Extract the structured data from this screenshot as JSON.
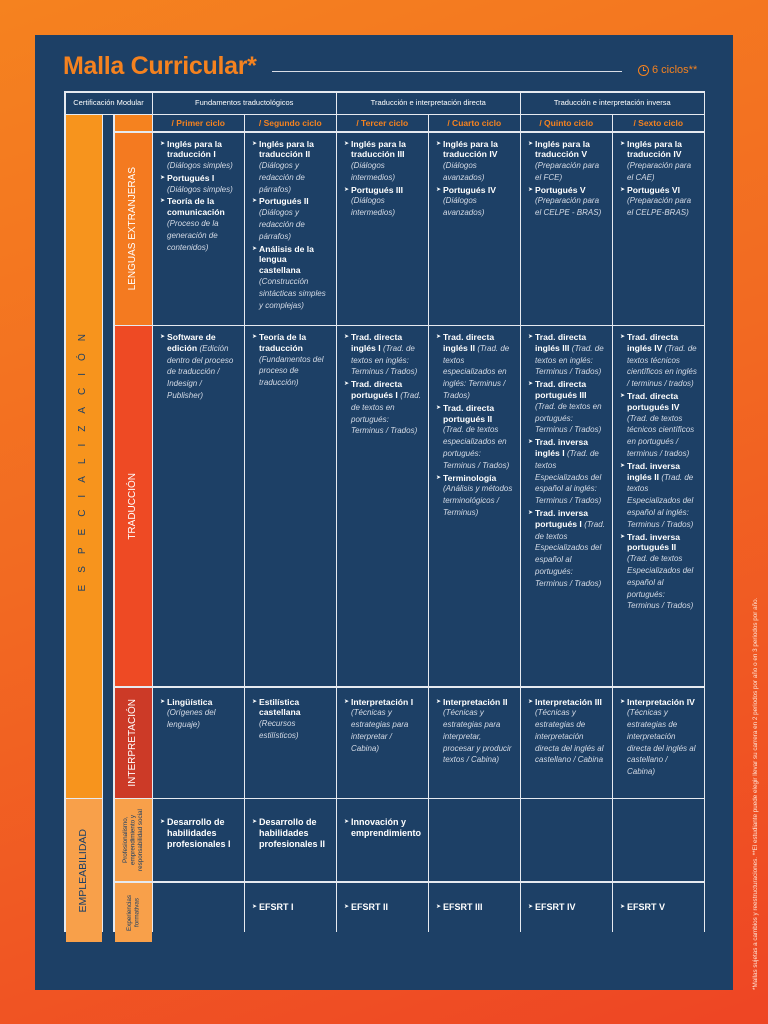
{
  "header": {
    "title": "Malla Curricular*",
    "cycles": "6 ciclos**"
  },
  "table": {
    "cert_modular": "Certificación Modular",
    "groups": [
      "Fundamentos traductológicos",
      "Traducción e interpretación directa",
      "Traducción e interpretación inversa"
    ],
    "cycles": [
      "/ Primer ciclo",
      "/ Segundo ciclo",
      "/ Tercer ciclo",
      "/ Cuarto ciclo",
      "/ Quinto ciclo",
      "/ Sexto ciclo"
    ],
    "areas": {
      "especializacion": "ESPECIALIZACIÓN",
      "empleabilidad": "EMPLEABILIDAD"
    },
    "rows": [
      {
        "label": "LENGUAS EXTRANJERAS",
        "color": "#f47a20",
        "cells": [
          [
            {
              "t": "Inglés para la traducción I",
              "d": "(Diálogos simples)"
            },
            {
              "t": "Portugués I",
              "d": "(Diálogos simples)"
            },
            {
              "t": "Teoría de la comunicación",
              "d": "(Proceso de la generación de contenidos)"
            }
          ],
          [
            {
              "t": "Inglés para la traducción II",
              "d": "(Diálogos y redacción de párrafos)"
            },
            {
              "t": "Portugués II",
              "d": "(Diálogos y redacción de párrafos)"
            },
            {
              "t": "Análisis de la lengua castellana",
              "d": "(Construcción sintácticas simples y complejas)"
            }
          ],
          [
            {
              "t": "Inglés para la traducción III",
              "d": "(Diálogos intermedios)"
            },
            {
              "t": "Portugués III",
              "d": "(Diálogos intermedios)"
            }
          ],
          [
            {
              "t": "Inglés para la traducción IV",
              "d": "(Diálogos avanzados)"
            },
            {
              "t": "Portugués IV",
              "d": "(Diálogos avanzados)"
            }
          ],
          [
            {
              "t": "Inglés para la traducción V",
              "d": "(Preparación para el FCE)"
            },
            {
              "t": "Portugués V",
              "d": "(Preparación para el CELPE - BRAS)"
            }
          ],
          [
            {
              "t": "Inglés para la traducción IV",
              "d": "(Preparación para el CAE)"
            },
            {
              "t": "Portugués VI",
              "d": "(Preparación para el CELPE-BRAS)"
            }
          ]
        ]
      },
      {
        "label": "TRADUCCIÓN",
        "color": "#ee4a24",
        "cells": [
          [
            {
              "t": "Software de edición",
              "d": "(Edición dentro del proceso de traducción / Indesign / Publisher)"
            }
          ],
          [
            {
              "t": "Teoría de la traducción",
              "d": "(Fundamentos del proceso de traducción)"
            }
          ],
          [
            {
              "t": "Trad. directa inglés I",
              "d": "(Trad. de textos en inglés: Terminus / Trados)"
            },
            {
              "t": "Trad. directa portugués I",
              "d": "(Trad. de textos en portugués: Terminus / Trados)"
            }
          ],
          [
            {
              "t": "Trad. directa inglés II",
              "d": "(Trad. de textos especializados en inglés: Terminus / Trados)"
            },
            {
              "t": "Trad. directa portugués II",
              "d": "(Trad. de textos especializados en portugués: Terminus / Trados)"
            },
            {
              "t": "Terminología",
              "d": "(Análisis y métodos terminológicos / Terminus)"
            }
          ],
          [
            {
              "t": "Trad. directa inglés III",
              "d": "(Trad. de textos en inglés: Terminus / Trados)"
            },
            {
              "t": "Trad. directa portugués III",
              "d": "(Trad. de textos en portugués: Terminus / Trados)"
            },
            {
              "t": "Trad. inversa inglés I",
              "d": "(Trad. de textos Especializados del español al inglés: Terminus / Trados)"
            },
            {
              "t": "Trad. inversa portugués I",
              "d": "(Trad. de textos Especializados del español al portugués: Terminus / Trados)"
            }
          ],
          [
            {
              "t": "Trad. directa inglés IV",
              "d": "(Trad. de textos técnicos científicos en inglés / terminus / trados)"
            },
            {
              "t": "Trad. directa portugués IV",
              "d": "(Trad. de textos técnicos científicos en portugués / terminus / trados)"
            },
            {
              "t": "Trad. inversa inglés II",
              "d": "(Trad. de textos Especializados del español al inglés: Terminus / Trados)"
            },
            {
              "t": "Trad. inversa portugués II",
              "d": "(Trad. de textos Especializados del español al portugués: Terminus / Trados)"
            }
          ]
        ]
      },
      {
        "label": "INTERPRETACIÓN",
        "color": "#cc3a27",
        "cells": [
          [
            {
              "t": "Lingüística",
              "d": "(Orígenes del lenguaje)"
            }
          ],
          [
            {
              "t": "Estilística castellana",
              "d": "(Recursos estilísticos)"
            }
          ],
          [
            {
              "t": "Interpretación I",
              "d": "(Técnicas y estrategias para interpretar / Cabina)"
            }
          ],
          [
            {
              "t": "Interpretación II",
              "d": "(Técnicas y estrategias para interpretar, procesar y producir textos / Cabina)"
            }
          ],
          [
            {
              "t": "Interpretación III",
              "d": "(Técnicas y estrategias de interpretación directa del inglés al castellano / Cabina"
            }
          ],
          [
            {
              "t": "Interpretación IV",
              "d": "(Técnicas y estrategias de interpretación directa del inglés al castellano / Cabina)"
            }
          ]
        ]
      },
      {
        "label": "Profesionalismo, emprendimiento y responsabilidad social",
        "color": "#f8a04a",
        "cells": [
          [
            {
              "t": "Desarrollo de habilidades profesionales I",
              "d": ""
            }
          ],
          [
            {
              "t": "Desarrollo de habilidades profesionales II",
              "d": ""
            }
          ],
          [
            {
              "t": "Innovación y emprendimiento",
              "d": ""
            }
          ],
          [],
          [],
          []
        ]
      },
      {
        "label": "Experiencias formativas",
        "color": "#f8a04a",
        "cells": [
          [],
          [
            {
              "t": "EFSRT I",
              "d": ""
            }
          ],
          [
            {
              "t": "EFSRT II",
              "d": ""
            }
          ],
          [
            {
              "t": "EFSRT III",
              "d": ""
            }
          ],
          [
            {
              "t": "EFSRT IV",
              "d": ""
            }
          ],
          [
            {
              "t": "EFSRT V",
              "d": ""
            }
          ]
        ]
      }
    ]
  },
  "footnote": "*Mallas sujetas a cambios y reestructuraciones. **El estudiante puede elegir llevar su carrera en 2 periodos por año o en 3 periodos por año."
}
